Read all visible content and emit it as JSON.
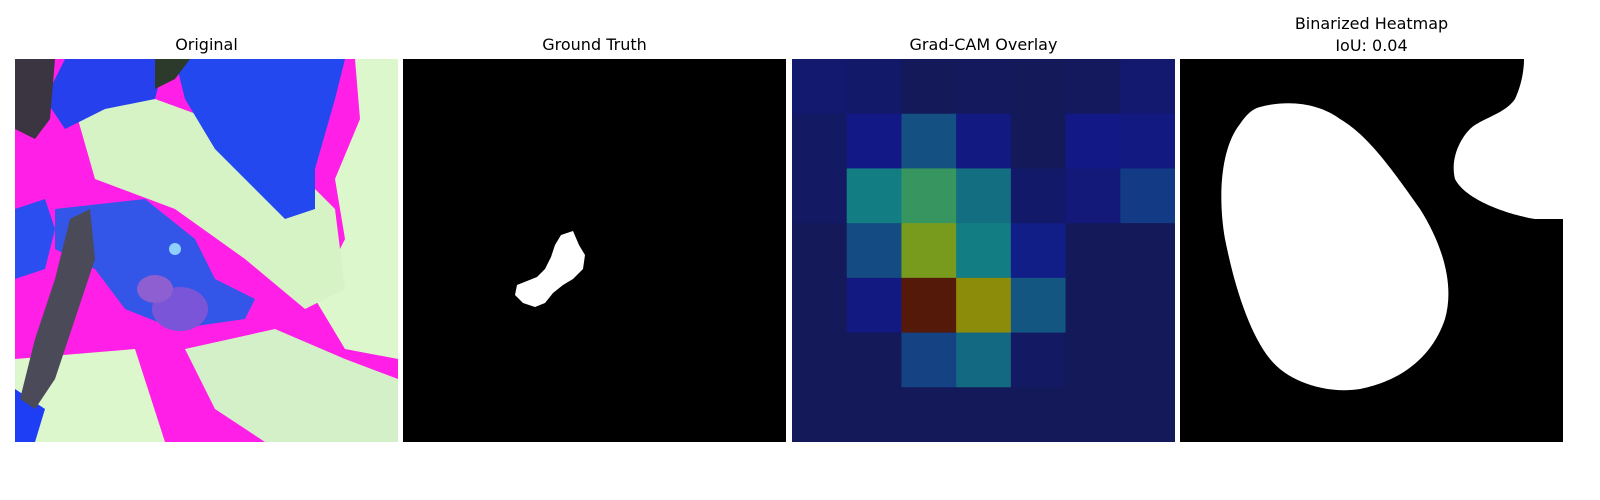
{
  "panels": [
    {
      "title": "Original"
    },
    {
      "title": "Ground Truth"
    },
    {
      "title": "Grad-CAM Overlay"
    },
    {
      "title": "Binarized Heatmap",
      "subtitle": "IoU: 0.04"
    }
  ],
  "colors": {
    "background": "#ffffff",
    "mask_fg": "#ffffff",
    "mask_bg": "#000000",
    "magenta": "#ff1fe6",
    "blue": "#2046f0",
    "pale_green": "#dcf7cc"
  },
  "gradcam_grid": [
    [
      0.12,
      0.1,
      0.05,
      0.06,
      0.05,
      0.06,
      0.12
    ],
    [
      0.08,
      0.2,
      0.4,
      0.18,
      0.05,
      0.2,
      0.18
    ],
    [
      0.08,
      0.55,
      0.62,
      0.5,
      0.1,
      0.15,
      0.32
    ],
    [
      0.05,
      0.38,
      0.75,
      0.55,
      0.22,
      0.05,
      0.05
    ],
    [
      0.05,
      0.18,
      1.0,
      0.8,
      0.42,
      0.05,
      0.05
    ],
    [
      0.05,
      0.05,
      0.35,
      0.48,
      0.08,
      0.05,
      0.05
    ],
    [
      0.05,
      0.05,
      0.05,
      0.05,
      0.05,
      0.05,
      0.05
    ]
  ]
}
